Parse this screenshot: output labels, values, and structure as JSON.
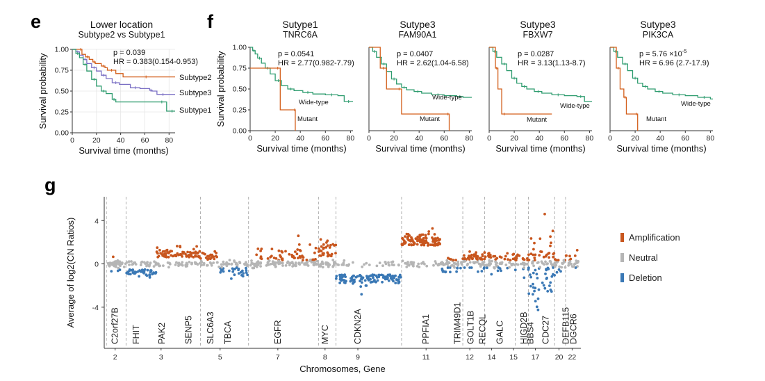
{
  "panel_letters": {
    "e": "e",
    "f": "f",
    "g": "g"
  },
  "chart_data": [
    {
      "type": "line",
      "panel": "e",
      "title": "Lower location",
      "subtitle": "Subtype2 vs Subtype1",
      "xlabel": "Survival time (months)",
      "ylabel": "Survival probability",
      "xlim": [
        0,
        85
      ],
      "ylim": [
        0,
        1
      ],
      "x_ticks": [
        "0",
        "20",
        "40",
        "60",
        "80"
      ],
      "y_ticks": [
        "0.00",
        "0.25",
        "0.50",
        "0.75",
        "1.00"
      ],
      "grid": true,
      "annotation_p": "p = 0.039",
      "annotation_hr": "HR = 0.383(0.154-0.953)",
      "series": [
        {
          "name": "Subtype2",
          "color": "#d35f1b",
          "x": [
            0,
            6,
            8,
            11,
            14,
            17,
            19,
            24,
            27,
            29,
            36,
            42,
            80,
            85
          ],
          "y": [
            1.0,
            1.0,
            0.94,
            0.91,
            0.88,
            0.85,
            0.83,
            0.8,
            0.78,
            0.75,
            0.71,
            0.67,
            0.67,
            0.67
          ]
        },
        {
          "name": "Subtype3",
          "color": "#7a6fc4",
          "x": [
            0,
            3,
            6,
            9,
            12,
            16,
            20,
            24,
            28,
            33,
            39,
            48,
            56,
            64,
            66,
            70,
            80,
            85
          ],
          "y": [
            1.0,
            0.97,
            0.93,
            0.88,
            0.83,
            0.78,
            0.74,
            0.69,
            0.65,
            0.6,
            0.58,
            0.54,
            0.53,
            0.51,
            0.5,
            0.46,
            0.46,
            0.46
          ]
        },
        {
          "name": "Subtype1",
          "color": "#2e9c6f",
          "x": [
            0,
            3,
            6,
            9,
            12,
            16,
            20,
            24,
            28,
            33,
            36,
            70,
            78,
            80,
            85
          ],
          "y": [
            1.0,
            0.95,
            0.9,
            0.82,
            0.74,
            0.64,
            0.56,
            0.5,
            0.47,
            0.4,
            0.37,
            0.37,
            0.26,
            0.26,
            0.26
          ]
        }
      ]
    },
    {
      "type": "line",
      "panel": "f",
      "title": "Sutype1",
      "subtitle": "TNRC6A",
      "xlabel": "Survival time (months)",
      "ylabel": "Survival probability",
      "xlim": [
        0,
        82
      ],
      "ylim": [
        0,
        1
      ],
      "x_ticks": [
        "0",
        "20",
        "40",
        "60",
        "80"
      ],
      "y_ticks": [
        "0.00",
        "0.25",
        "0.50",
        "0.75",
        "1.00"
      ],
      "annotation_p": "p = 0.0541",
      "annotation_hr": "HR =  2.77(0.982-7.79)",
      "series": [
        {
          "name": "Wide-type",
          "color": "#2e9c6f",
          "x": [
            0,
            2,
            4,
            6,
            9,
            12,
            16,
            20,
            25,
            30,
            35,
            42,
            50,
            60,
            70,
            75,
            82
          ],
          "y": [
            1.0,
            0.96,
            0.92,
            0.87,
            0.81,
            0.75,
            0.68,
            0.6,
            0.54,
            0.5,
            0.48,
            0.46,
            0.44,
            0.43,
            0.42,
            0.35,
            0.35
          ]
        },
        {
          "name": "Mutant",
          "color": "#d35f1b",
          "x": [
            0,
            20,
            24,
            35,
            36
          ],
          "y": [
            0.75,
            0.75,
            0.25,
            0.25,
            0.0
          ]
        }
      ]
    },
    {
      "type": "line",
      "panel": "f",
      "title": "Sutype3",
      "subtitle": "FAM90A1",
      "xlabel": "Survival time (months)",
      "xlim": [
        0,
        82
      ],
      "ylim": [
        0,
        1
      ],
      "x_ticks": [
        "0",
        "20",
        "40",
        "60",
        "80"
      ],
      "annotation_p": "p = 0.0407",
      "annotation_hr": "HR = 2.62(1.04-6.58)",
      "series": [
        {
          "name": "Wide-type",
          "color": "#2e9c6f",
          "x": [
            0,
            3,
            6,
            10,
            14,
            18,
            22,
            26,
            30,
            36,
            42,
            50,
            60,
            70,
            75,
            82
          ],
          "y": [
            1.0,
            0.95,
            0.88,
            0.8,
            0.71,
            0.62,
            0.56,
            0.52,
            0.49,
            0.47,
            0.45,
            0.43,
            0.42,
            0.41,
            0.4,
            0.4
          ]
        },
        {
          "name": "Mutant",
          "color": "#d35f1b",
          "x": [
            0,
            9,
            14,
            22,
            26,
            62,
            64
          ],
          "y": [
            1.0,
            0.75,
            0.5,
            0.5,
            0.2,
            0.2,
            0.0
          ]
        }
      ]
    },
    {
      "type": "line",
      "panel": "f",
      "title": "Sutype3",
      "subtitle": "FBXW7",
      "xlabel": "Survival time (months)",
      "xlim": [
        0,
        82
      ],
      "ylim": [
        0,
        1
      ],
      "x_ticks": [
        "0",
        "20",
        "40",
        "60",
        "80"
      ],
      "annotation_p": "p = 0.0287",
      "annotation_hr": "HR = 3.13(1.13-8.7)",
      "series": [
        {
          "name": "Wide-type",
          "color": "#2e9c6f",
          "x": [
            0,
            3,
            6,
            10,
            14,
            18,
            22,
            26,
            30,
            36,
            42,
            50,
            60,
            70,
            76,
            82
          ],
          "y": [
            1.0,
            0.95,
            0.88,
            0.8,
            0.72,
            0.63,
            0.57,
            0.53,
            0.5,
            0.47,
            0.45,
            0.43,
            0.42,
            0.41,
            0.35,
            0.35
          ]
        },
        {
          "name": "Mutant",
          "color": "#d35f1b",
          "x": [
            0,
            5,
            7,
            10,
            14,
            50
          ],
          "y": [
            1.0,
            0.75,
            0.5,
            0.2,
            0.2,
            0.2
          ]
        }
      ]
    },
    {
      "type": "line",
      "panel": "f",
      "title": "Sutype3",
      "subtitle": "PIK3CA",
      "xlabel": "Survival time (months)",
      "xlim": [
        0,
        82
      ],
      "ylim": [
        0,
        1
      ],
      "x_ticks": [
        "0",
        "20",
        "40",
        "60",
        "80"
      ],
      "annotation_p": "p = 5.76 ×10",
      "annotation_p_exp": "-5",
      "annotation_hr": "HR = 6.96 (2.7-17.9)",
      "series": [
        {
          "name": "Wide-type",
          "color": "#2e9c6f",
          "x": [
            0,
            3,
            6,
            10,
            14,
            18,
            22,
            26,
            30,
            36,
            42,
            50,
            60,
            70,
            80,
            82
          ],
          "y": [
            1.0,
            0.95,
            0.88,
            0.8,
            0.72,
            0.63,
            0.57,
            0.53,
            0.5,
            0.47,
            0.45,
            0.43,
            0.42,
            0.4,
            0.38,
            0.38
          ]
        },
        {
          "name": "Mutant",
          "color": "#d35f1b",
          "x": [
            0,
            5,
            8,
            11,
            13,
            20,
            22
          ],
          "y": [
            1.0,
            0.75,
            0.5,
            0.4,
            0.2,
            0.2,
            0.0
          ]
        }
      ]
    },
    {
      "type": "scatter",
      "panel": "g",
      "ylabel": "Average of log2(CN Ratios)",
      "xlabel": "Chromosomes, Gene",
      "ylim": [
        -7.8,
        6.2
      ],
      "y_ticks": [
        4,
        0,
        -4
      ],
      "legend_position": "right",
      "legend": [
        {
          "label": "Amplification",
          "color": "#c8561e"
        },
        {
          "label": "Neutral",
          "color": "#b5b5b5"
        },
        {
          "label": "Deletion",
          "color": "#3a78b5"
        }
      ],
      "chromosome_labels": [
        {
          "label": "2",
          "pos": 0.025
        },
        {
          "label": "3",
          "pos": 0.13
        },
        {
          "label": "5",
          "pos": 0.265
        },
        {
          "label": "7",
          "pos": 0.397
        },
        {
          "label": "8",
          "pos": 0.505
        },
        {
          "label": "9",
          "pos": 0.58
        },
        {
          "label": "11",
          "pos": 0.736
        },
        {
          "label": "12",
          "pos": 0.836
        },
        {
          "label": "14",
          "pos": 0.886
        },
        {
          "label": "15",
          "pos": 0.936
        },
        {
          "label": "17",
          "pos": 0.986
        },
        {
          "label": "20",
          "pos": 1.04
        },
        {
          "label": "22",
          "pos": 1.07
        }
      ],
      "genes": [
        {
          "label": "C2orf27B",
          "pos": 0.025
        },
        {
          "label": "FHIT",
          "pos": 0.073
        },
        {
          "label": "PAK2",
          "pos": 0.132
        },
        {
          "label": "SENP5",
          "pos": 0.193
        },
        {
          "label": "SLC6A3",
          "pos": 0.243
        },
        {
          "label": "TBCA",
          "pos": 0.283
        },
        {
          "label": "EGFR",
          "pos": 0.397
        },
        {
          "label": "MYC",
          "pos": 0.505
        },
        {
          "label": "CDKN2A",
          "pos": 0.58
        },
        {
          "label": "PPFIA1",
          "pos": 0.736
        },
        {
          "label": "TRIM49D1",
          "pos": 0.808
        },
        {
          "label": "GOLT1B",
          "pos": 0.838
        },
        {
          "label": "RECQL",
          "pos": 0.865
        },
        {
          "label": "GALC",
          "pos": 0.905
        },
        {
          "label": "HIGD2B",
          "pos": 0.96
        },
        {
          "label": "BBS4",
          "pos": 0.975
        },
        {
          "label": "CDC27",
          "pos": 1.01
        },
        {
          "label": "DEFB115",
          "pos": 1.056
        },
        {
          "label": "DGCR6",
          "pos": 1.073
        }
      ],
      "chromosome_boundaries": [
        0.005,
        0.05,
        0.22,
        0.33,
        0.49,
        0.53,
        0.68,
        0.82,
        0.87,
        0.94,
        0.97,
        1.03,
        1.055
      ],
      "segments": [
        {
          "start": 0.005,
          "end": 0.05,
          "mean": 0.0,
          "spread": 0.2,
          "amp_frac": 0.05,
          "del_frac": 0.1,
          "n": 40
        },
        {
          "start": 0.05,
          "end": 0.12,
          "mean": -0.5,
          "spread": 0.3,
          "amp_frac": 0.0,
          "del_frac": 0.6,
          "n": 70
        },
        {
          "start": 0.12,
          "end": 0.22,
          "mean": 0.6,
          "spread": 0.45,
          "amp_frac": 0.7,
          "del_frac": 0.0,
          "n": 110
        },
        {
          "start": 0.22,
          "end": 0.26,
          "mean": 0.4,
          "spread": 0.35,
          "amp_frac": 0.55,
          "del_frac": 0.0,
          "n": 35
        },
        {
          "start": 0.26,
          "end": 0.33,
          "mean": -0.35,
          "spread": 0.3,
          "amp_frac": 0.0,
          "del_frac": 0.4,
          "n": 55
        },
        {
          "start": 0.33,
          "end": 0.49,
          "mean": 0.3,
          "spread": 0.7,
          "amp_frac": 0.35,
          "del_frac": 0.0,
          "n": 140
        },
        {
          "start": 0.49,
          "end": 0.53,
          "mean": 0.6,
          "spread": 0.8,
          "amp_frac": 0.6,
          "del_frac": 0.0,
          "n": 55
        },
        {
          "start": 0.53,
          "end": 0.68,
          "mean": -1.0,
          "spread": 0.45,
          "amp_frac": 0.0,
          "del_frac": 0.85,
          "n": 150
        },
        {
          "start": 0.68,
          "end": 0.77,
          "mean": 1.7,
          "spread": 0.55,
          "amp_frac": 0.85,
          "del_frac": 0.0,
          "n": 140
        },
        {
          "start": 0.77,
          "end": 0.82,
          "mean": -0.3,
          "spread": 0.3,
          "amp_frac": 0.05,
          "del_frac": 0.4,
          "n": 50
        },
        {
          "start": 0.82,
          "end": 0.87,
          "mean": 0.4,
          "spread": 0.4,
          "amp_frac": 0.5,
          "del_frac": 0.05,
          "n": 60
        },
        {
          "start": 0.87,
          "end": 0.94,
          "mean": 0.3,
          "spread": 0.4,
          "amp_frac": 0.4,
          "del_frac": 0.1,
          "n": 60
        },
        {
          "start": 0.94,
          "end": 0.97,
          "mean": 0.1,
          "spread": 0.4,
          "amp_frac": 0.3,
          "del_frac": 0.2,
          "n": 30
        },
        {
          "start": 0.97,
          "end": 1.03,
          "mean": 0.2,
          "spread": 1.4,
          "amp_frac": 0.35,
          "del_frac": 0.35,
          "n": 90
        },
        {
          "start": 1.03,
          "end": 1.055,
          "mean": 0.1,
          "spread": 0.3,
          "amp_frac": 0.2,
          "del_frac": 0.1,
          "n": 20
        },
        {
          "start": 1.055,
          "end": 1.085,
          "mean": 0.3,
          "spread": 0.4,
          "amp_frac": 0.4,
          "del_frac": 0.1,
          "n": 25
        }
      ]
    }
  ]
}
